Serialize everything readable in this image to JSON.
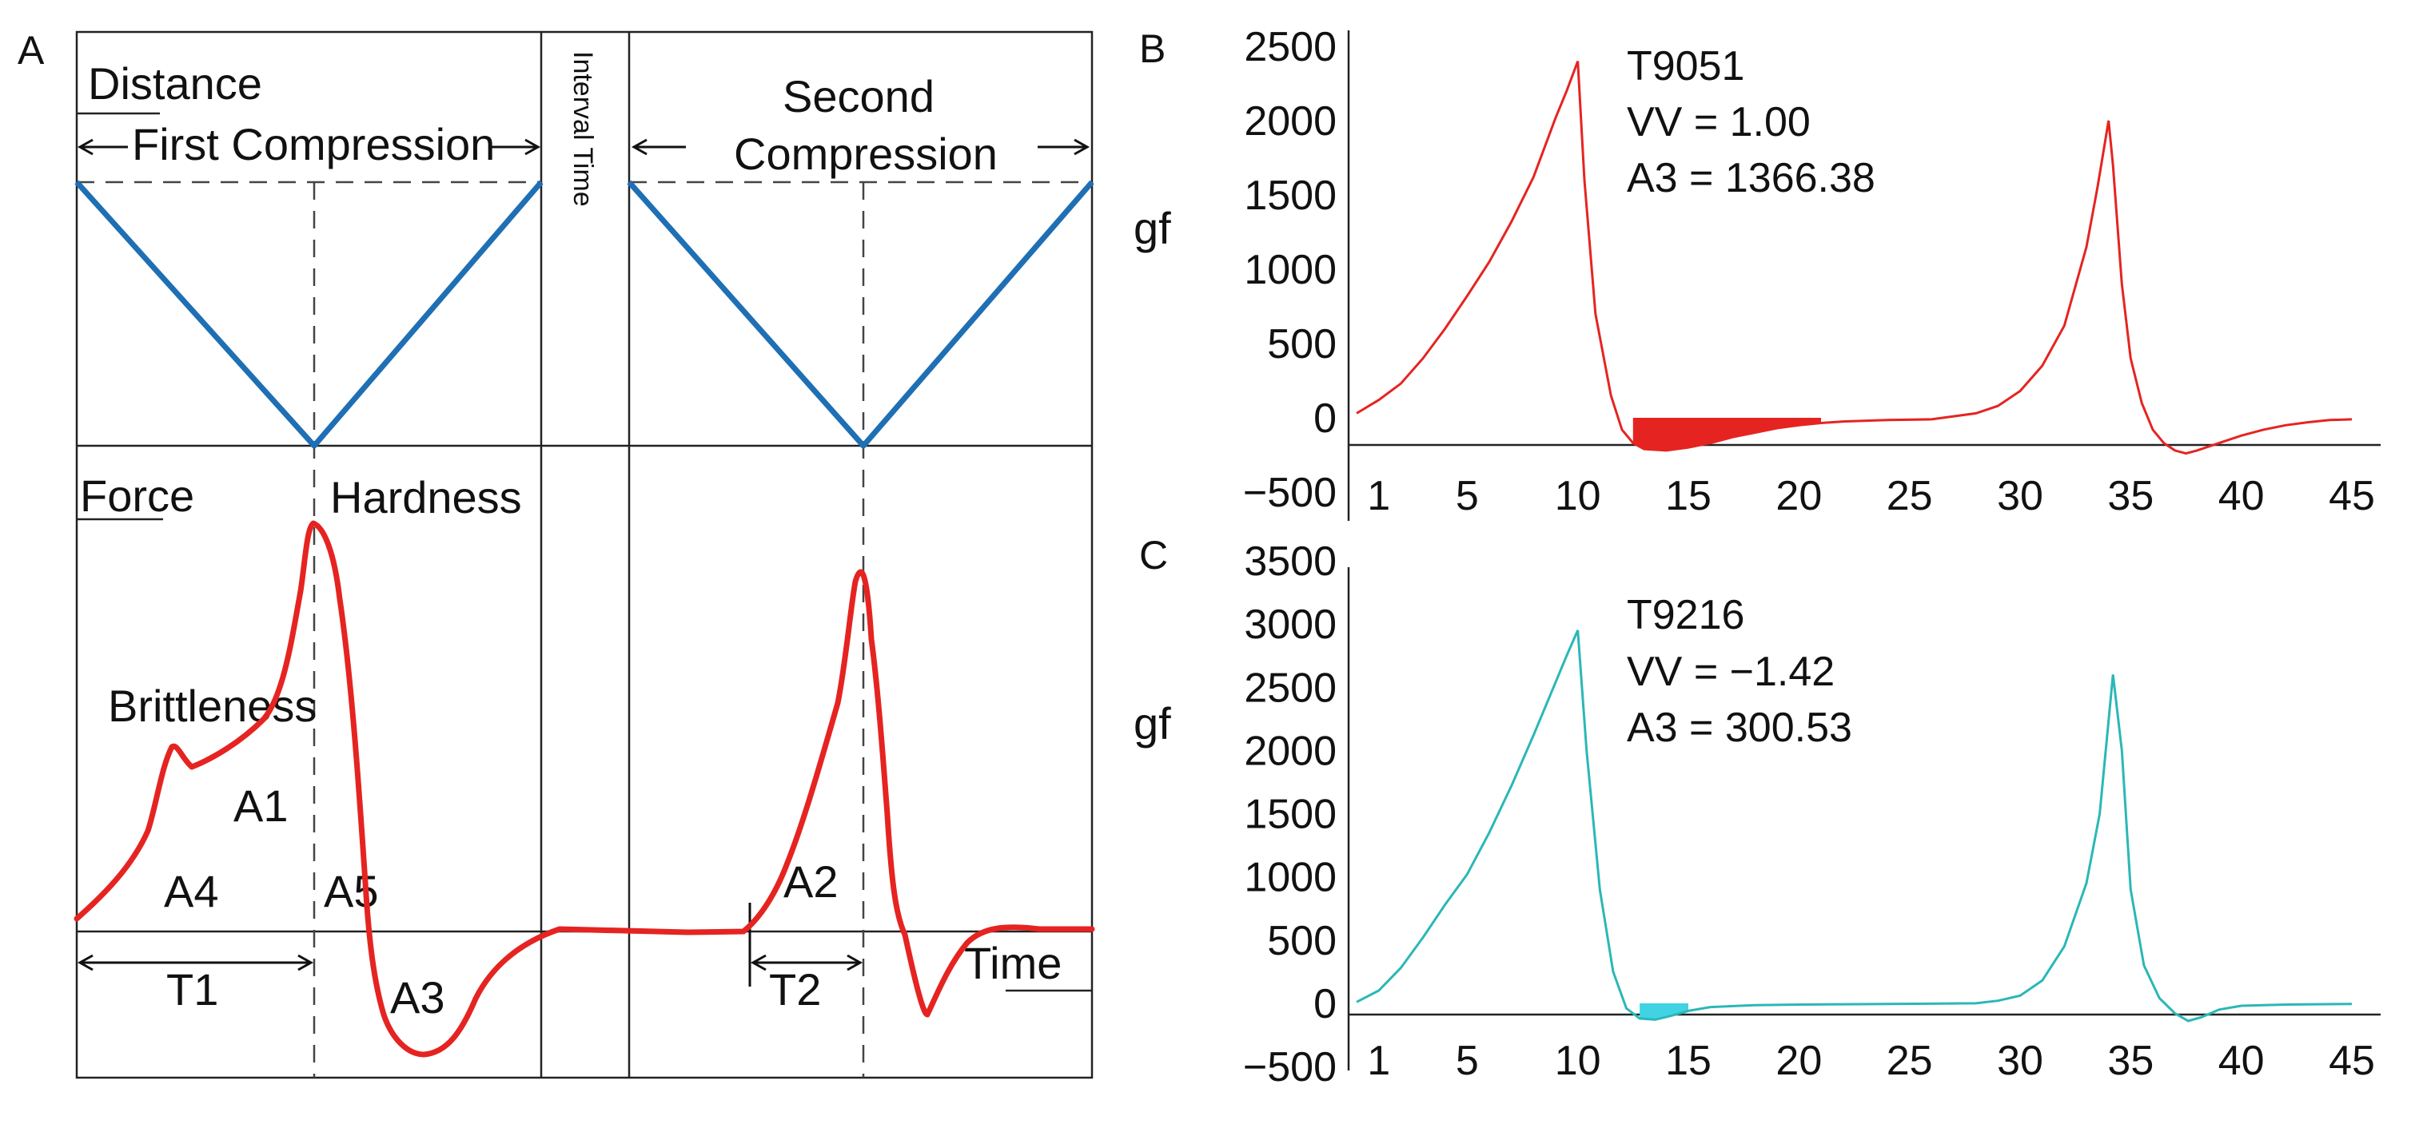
{
  "panel_a": {
    "letter": "A",
    "distance_label": "Distance",
    "first_compression": "First Compression",
    "interval_time": "Interval Time",
    "second_compression_line1": "Second",
    "second_compression_line2": "Compression",
    "force_label": "Force",
    "hardness_label": "Hardness",
    "brittleness_label": "Brittleness",
    "a1": "A1",
    "a2": "A2",
    "a3": "A3",
    "a4": "A4",
    "a5": "A5",
    "t1": "T1",
    "t2": "T2",
    "time_label": "Time"
  },
  "chart_data": [
    {
      "panel": "B",
      "type": "line",
      "title": "",
      "ylabel": "gf",
      "xlabel": "",
      "ylim": [
        -500,
        2500
      ],
      "xlim": [
        0,
        45
      ],
      "y_ticks": [
        "2500",
        "2000",
        "1500",
        "1000",
        "500",
        "0",
        "−500"
      ],
      "y_tick_values": [
        2500,
        2000,
        1500,
        1000,
        500,
        0,
        -500
      ],
      "x_ticks": [
        "1",
        "5",
        "10",
        "15",
        "20",
        "25",
        "30",
        "35",
        "40",
        "45"
      ],
      "x_tick_values": [
        1,
        5,
        10,
        15,
        20,
        25,
        30,
        35,
        40,
        45
      ],
      "info": [
        "T9051",
        "VV = 1.00",
        "A3 = 1366.38"
      ],
      "color": "#e52421",
      "fill_color": "#e52421",
      "fill_range": [
        12.4,
        21
      ],
      "series": [
        {
          "name": "T9051",
          "x": [
            0,
            1,
            2,
            3,
            4,
            5,
            6,
            7,
            8,
            9,
            9.5,
            10,
            10.3,
            10.8,
            11.5,
            12,
            12.5,
            13,
            14,
            15,
            16,
            17,
            18,
            19,
            20,
            21,
            22,
            24,
            26,
            28,
            29,
            30,
            31,
            32,
            33,
            33.5,
            34,
            34.2,
            34.6,
            35,
            35.5,
            36,
            36.5,
            37,
            37.5,
            38,
            39,
            40,
            41,
            42,
            43,
            44,
            45
          ],
          "y": [
            30,
            120,
            230,
            400,
            600,
            820,
            1050,
            1320,
            1620,
            2020,
            2200,
            2400,
            1600,
            700,
            150,
            -80,
            -170,
            -210,
            -220,
            -200,
            -170,
            -130,
            -100,
            -70,
            -50,
            -35,
            -25,
            -15,
            -10,
            30,
            80,
            180,
            350,
            620,
            1150,
            1550,
            2000,
            1700,
            900,
            400,
            100,
            -80,
            -170,
            -220,
            -240,
            -220,
            -170,
            -120,
            -80,
            -50,
            -30,
            -15,
            -10
          ]
        }
      ]
    },
    {
      "panel": "C",
      "type": "line",
      "title": "",
      "ylabel": "gf",
      "xlabel": "",
      "ylim": [
        -500,
        3500
      ],
      "xlim": [
        0,
        45
      ],
      "y_ticks": [
        "3500",
        "3000",
        "2500",
        "2000",
        "1500",
        "1000",
        "500",
        "0",
        "−500"
      ],
      "y_tick_values": [
        3500,
        3000,
        2500,
        2000,
        1500,
        1000,
        500,
        0,
        -500
      ],
      "x_ticks": [
        "1",
        "5",
        "10",
        "15",
        "20",
        "25",
        "30",
        "35",
        "40",
        "45"
      ],
      "x_tick_values": [
        1,
        5,
        10,
        15,
        20,
        25,
        30,
        35,
        40,
        45
      ],
      "info": [
        "T9216",
        "VV = −1.42",
        "A3 = 300.53"
      ],
      "color": "#2bb7b7",
      "fill_color": "#3fd3e4",
      "fill_range": [
        12.3,
        15.2
      ],
      "series": [
        {
          "name": "T9216",
          "x": [
            0,
            1,
            2,
            3,
            4,
            5,
            6,
            7,
            8,
            9,
            9.5,
            10,
            10.4,
            11,
            11.6,
            12.2,
            12.8,
            13.5,
            14.2,
            15,
            16,
            18,
            20,
            24,
            28,
            29,
            30,
            31,
            32,
            33,
            33.6,
            34.2,
            34.6,
            35,
            35.6,
            36.3,
            37,
            37.6,
            38.2,
            39,
            40,
            42,
            45
          ],
          "y": [
            10,
            100,
            280,
            520,
            780,
            1020,
            1350,
            1720,
            2120,
            2540,
            2750,
            2950,
            2000,
            900,
            250,
            -40,
            -120,
            -130,
            -100,
            -60,
            -30,
            -15,
            -10,
            -5,
            0,
            20,
            60,
            180,
            450,
            950,
            1500,
            2600,
            2000,
            900,
            300,
            40,
            -80,
            -140,
            -110,
            -50,
            -20,
            -10,
            -5
          ]
        }
      ]
    }
  ]
}
